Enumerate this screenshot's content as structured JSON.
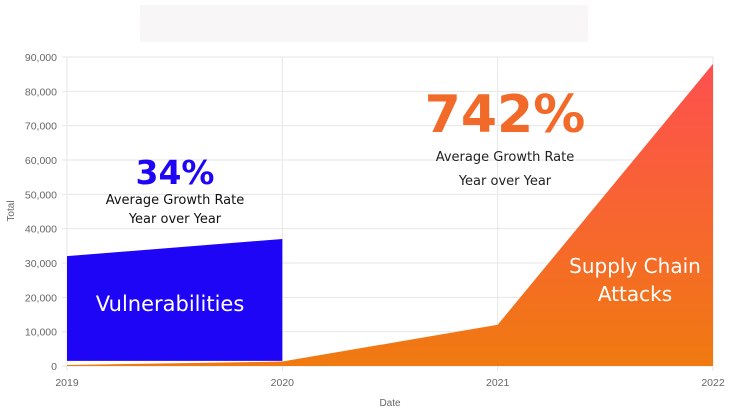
{
  "chart_data": {
    "type": "area",
    "xlabel": "Date",
    "ylabel": "Total",
    "categories": [
      "2019",
      "2020",
      "2021",
      "2022"
    ],
    "ylim": [
      0,
      90000
    ],
    "yticks": [
      "0",
      "10,000",
      "20,000",
      "30,000",
      "40,000",
      "50,000",
      "60,000",
      "70,000",
      "80,000",
      "90,000"
    ],
    "grid": true,
    "series": [
      {
        "name": "Supply Chain Attacks",
        "values": [
          300,
          1300,
          12000,
          88000
        ],
        "color_top": "#fe5050",
        "color_bottom": "#f07a10"
      },
      {
        "name": "Vulnerabilities",
        "x": [
          "2019",
          "2020"
        ],
        "values": [
          32000,
          37000
        ],
        "base": 1500,
        "color": "#1f05f5"
      }
    ],
    "annotations": [
      {
        "value": "34%",
        "line1": "Average Growth Rate",
        "line2": "Year over Year",
        "color": "#1f05f5"
      },
      {
        "value": "742%",
        "line1": "Average Growth Rate",
        "line2": "Year over Year",
        "color": "#f26a2a"
      }
    ],
    "labels": {
      "vulnerabilities": "Vulnerabilities",
      "supply_line1": "Supply Chain",
      "supply_line2": "Attacks"
    }
  }
}
